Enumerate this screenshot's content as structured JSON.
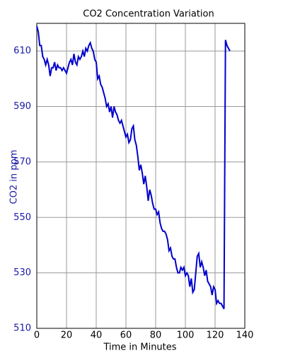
{
  "chart_data": {
    "type": "line",
    "title": "CO2 Concentration Variation",
    "x_label": "Time in Minutes",
    "y_label": "CO2 in ppm",
    "x": [
      0,
      1,
      2,
      3,
      4,
      5,
      6,
      7,
      8,
      9,
      10,
      11,
      12,
      13,
      14,
      15,
      16,
      17,
      18,
      19,
      20,
      21,
      22,
      23,
      24,
      25,
      26,
      27,
      28,
      29,
      30,
      31,
      32,
      33,
      34,
      35,
      36,
      37,
      38,
      39,
      40,
      41,
      42,
      43,
      44,
      45,
      46,
      47,
      48,
      49,
      50,
      51,
      52,
      53,
      54,
      55,
      56,
      57,
      58,
      59,
      60,
      61,
      62,
      63,
      64,
      65,
      66,
      67,
      68,
      69,
      70,
      71,
      72,
      73,
      74,
      75,
      76,
      77,
      78,
      79,
      80,
      81,
      82,
      83,
      84,
      85,
      86,
      87,
      88,
      89,
      90,
      91,
      92,
      93,
      94,
      95,
      96,
      97,
      98,
      99,
      100,
      101,
      102,
      103,
      104,
      105,
      106,
      107,
      108,
      109,
      110,
      111,
      112,
      113,
      114,
      115,
      116,
      117,
      118,
      119,
      120,
      121,
      122,
      123,
      124,
      125,
      126,
      127,
      128,
      129,
      130
    ],
    "series": [
      {
        "name": "CO2",
        "color": "#0000cc",
        "values": [
          619,
          617,
          612,
          612,
          608,
          607,
          605,
          607,
          605,
          601,
          604,
          604,
          606,
          603,
          605,
          604,
          604,
          603,
          604,
          603,
          602,
          604,
          606,
          607,
          605,
          609,
          606,
          605,
          608,
          607,
          608,
          610,
          608,
          611,
          610,
          612,
          613,
          611,
          610,
          607,
          606,
          600,
          601,
          598,
          597,
          595,
          593,
          590,
          591,
          588,
          590,
          586,
          590,
          588,
          587,
          585,
          584,
          585,
          583,
          581,
          579,
          580,
          577,
          578,
          582,
          583,
          578,
          576,
          572,
          567,
          569,
          566,
          562,
          565,
          561,
          556,
          560,
          558,
          555,
          553,
          553,
          551,
          552,
          548,
          546,
          545,
          545,
          544,
          542,
          538,
          539,
          536,
          535,
          535,
          532,
          530,
          530,
          532,
          531,
          532,
          529,
          530,
          529,
          525,
          528,
          523,
          524,
          530,
          536,
          537,
          532,
          534,
          532,
          529,
          531,
          527,
          526,
          525,
          522,
          525,
          524,
          519,
          520,
          519,
          519,
          518,
          517,
          614,
          612,
          611,
          610
        ]
      }
    ],
    "xlim": [
      0,
      140
    ],
    "xticks": [
      0,
      20,
      40,
      60,
      80,
      100,
      120,
      140
    ],
    "ylim": [
      510,
      620
    ],
    "yticks": [
      510,
      530,
      550,
      570,
      590,
      610
    ],
    "grid": true
  }
}
